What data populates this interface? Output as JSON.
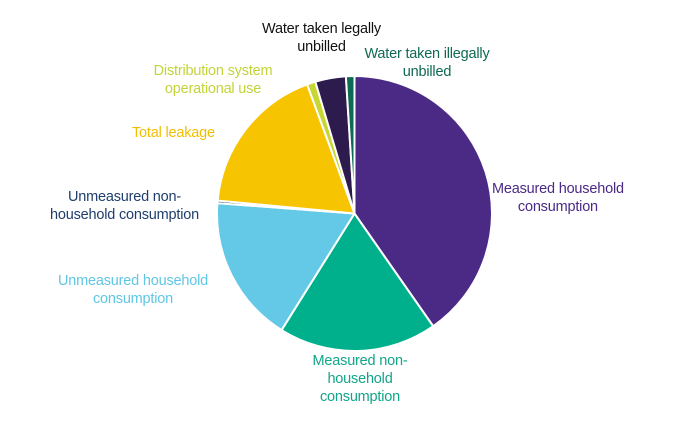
{
  "chart_data": {
    "type": "pie",
    "title": "",
    "start_angle_deg_from_top": 0,
    "direction": "clockwise",
    "unit": "percent (estimated from slice angles)",
    "slices": [
      {
        "name": "Measured household consumption",
        "value": 40.3,
        "color": "#4B2A86",
        "label_color": "#4B2A86"
      },
      {
        "name": "Measured non-household consumption",
        "value": 18.6,
        "color": "#00B08C",
        "label_color": "#12A58A"
      },
      {
        "name": "Unmeasured household consumption",
        "value": 17.3,
        "color": "#63C9E6",
        "label_color": "#5FC6E4"
      },
      {
        "name": "Unmeasured non-household consumption",
        "value": 0.3,
        "color": "#1F3E6E",
        "label_color": "#1F3E6E"
      },
      {
        "name": "Total leakage",
        "value": 17.9,
        "color": "#F6C400",
        "label_color": "#F2BE00"
      },
      {
        "name": "Distribution system operational use",
        "value": 1.0,
        "color": "#C8D633",
        "label_color": "#C3D43A"
      },
      {
        "name": "Water taken legally unbilled",
        "value": 3.6,
        "color": "#2D1B4E",
        "label_color": "#111111"
      },
      {
        "name": "Water taken illegally unbilled",
        "value": 1.0,
        "color": "#0E6A52",
        "label_color": "#0E6A52"
      }
    ],
    "legend": "none (direct labels)"
  },
  "labels": {
    "measured_household": [
      "Measured household",
      "consumption"
    ],
    "measured_non_household": [
      "Measured non-",
      "household",
      "consumption"
    ],
    "unmeasured_household": [
      "Unmeasured household",
      "consumption"
    ],
    "unmeasured_non_household": [
      "Unmeasured non-",
      "household consumption"
    ],
    "total_leakage": [
      "Total leakage"
    ],
    "distribution": [
      "Distribution system",
      "operational use"
    ],
    "legally_unbilled": [
      "Water taken legally",
      "unbilled"
    ],
    "illegally_unbilled": [
      "Water taken illegally",
      "unbilled"
    ]
  }
}
